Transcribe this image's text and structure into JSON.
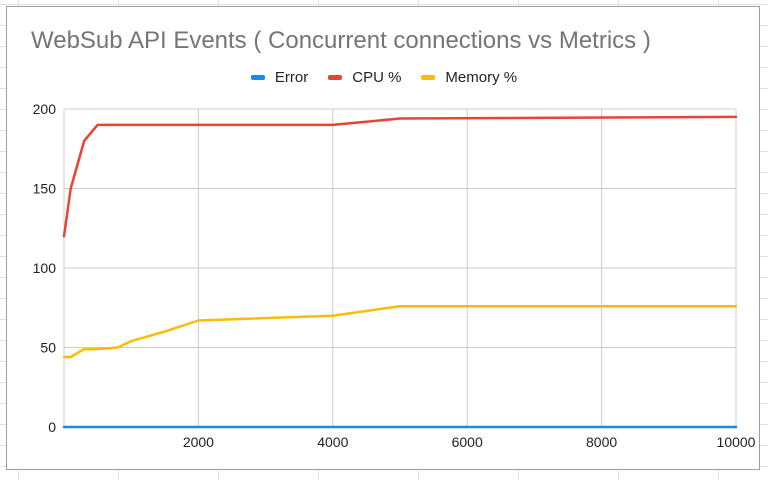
{
  "chart_data": {
    "type": "line",
    "title": "WebSub API Events ( Concurrent connections vs Metrics )",
    "xlabel": "",
    "ylabel": "",
    "xlim": [
      0,
      10000
    ],
    "ylim": [
      0,
      200
    ],
    "xticks": [
      2000,
      4000,
      6000,
      8000,
      10000
    ],
    "yticks": [
      0,
      50,
      100,
      150,
      200
    ],
    "grid": true,
    "legend_position": "top",
    "series": [
      {
        "name": "Error",
        "color": "#1e88e5",
        "x": [
          0,
          100,
          300,
          500,
          800,
          1000,
          1500,
          2000,
          4000,
          5000,
          10000
        ],
        "values": [
          0,
          0,
          0,
          0,
          0,
          0,
          0,
          0,
          0,
          0,
          0
        ]
      },
      {
        "name": "CPU %",
        "color": "#ea4335",
        "x": [
          0,
          100,
          300,
          500,
          800,
          1000,
          1500,
          2000,
          4000,
          5000,
          10000
        ],
        "values": [
          120,
          150,
          180,
          190,
          190,
          190,
          190,
          190,
          190,
          194,
          195
        ]
      },
      {
        "name": "Memory %",
        "color": "#fbbc04",
        "x": [
          0,
          100,
          300,
          500,
          800,
          1000,
          1500,
          2000,
          4000,
          5000,
          10000
        ],
        "values": [
          44,
          44,
          49,
          49,
          50,
          54,
          60,
          67,
          70,
          76,
          76
        ]
      }
    ]
  }
}
